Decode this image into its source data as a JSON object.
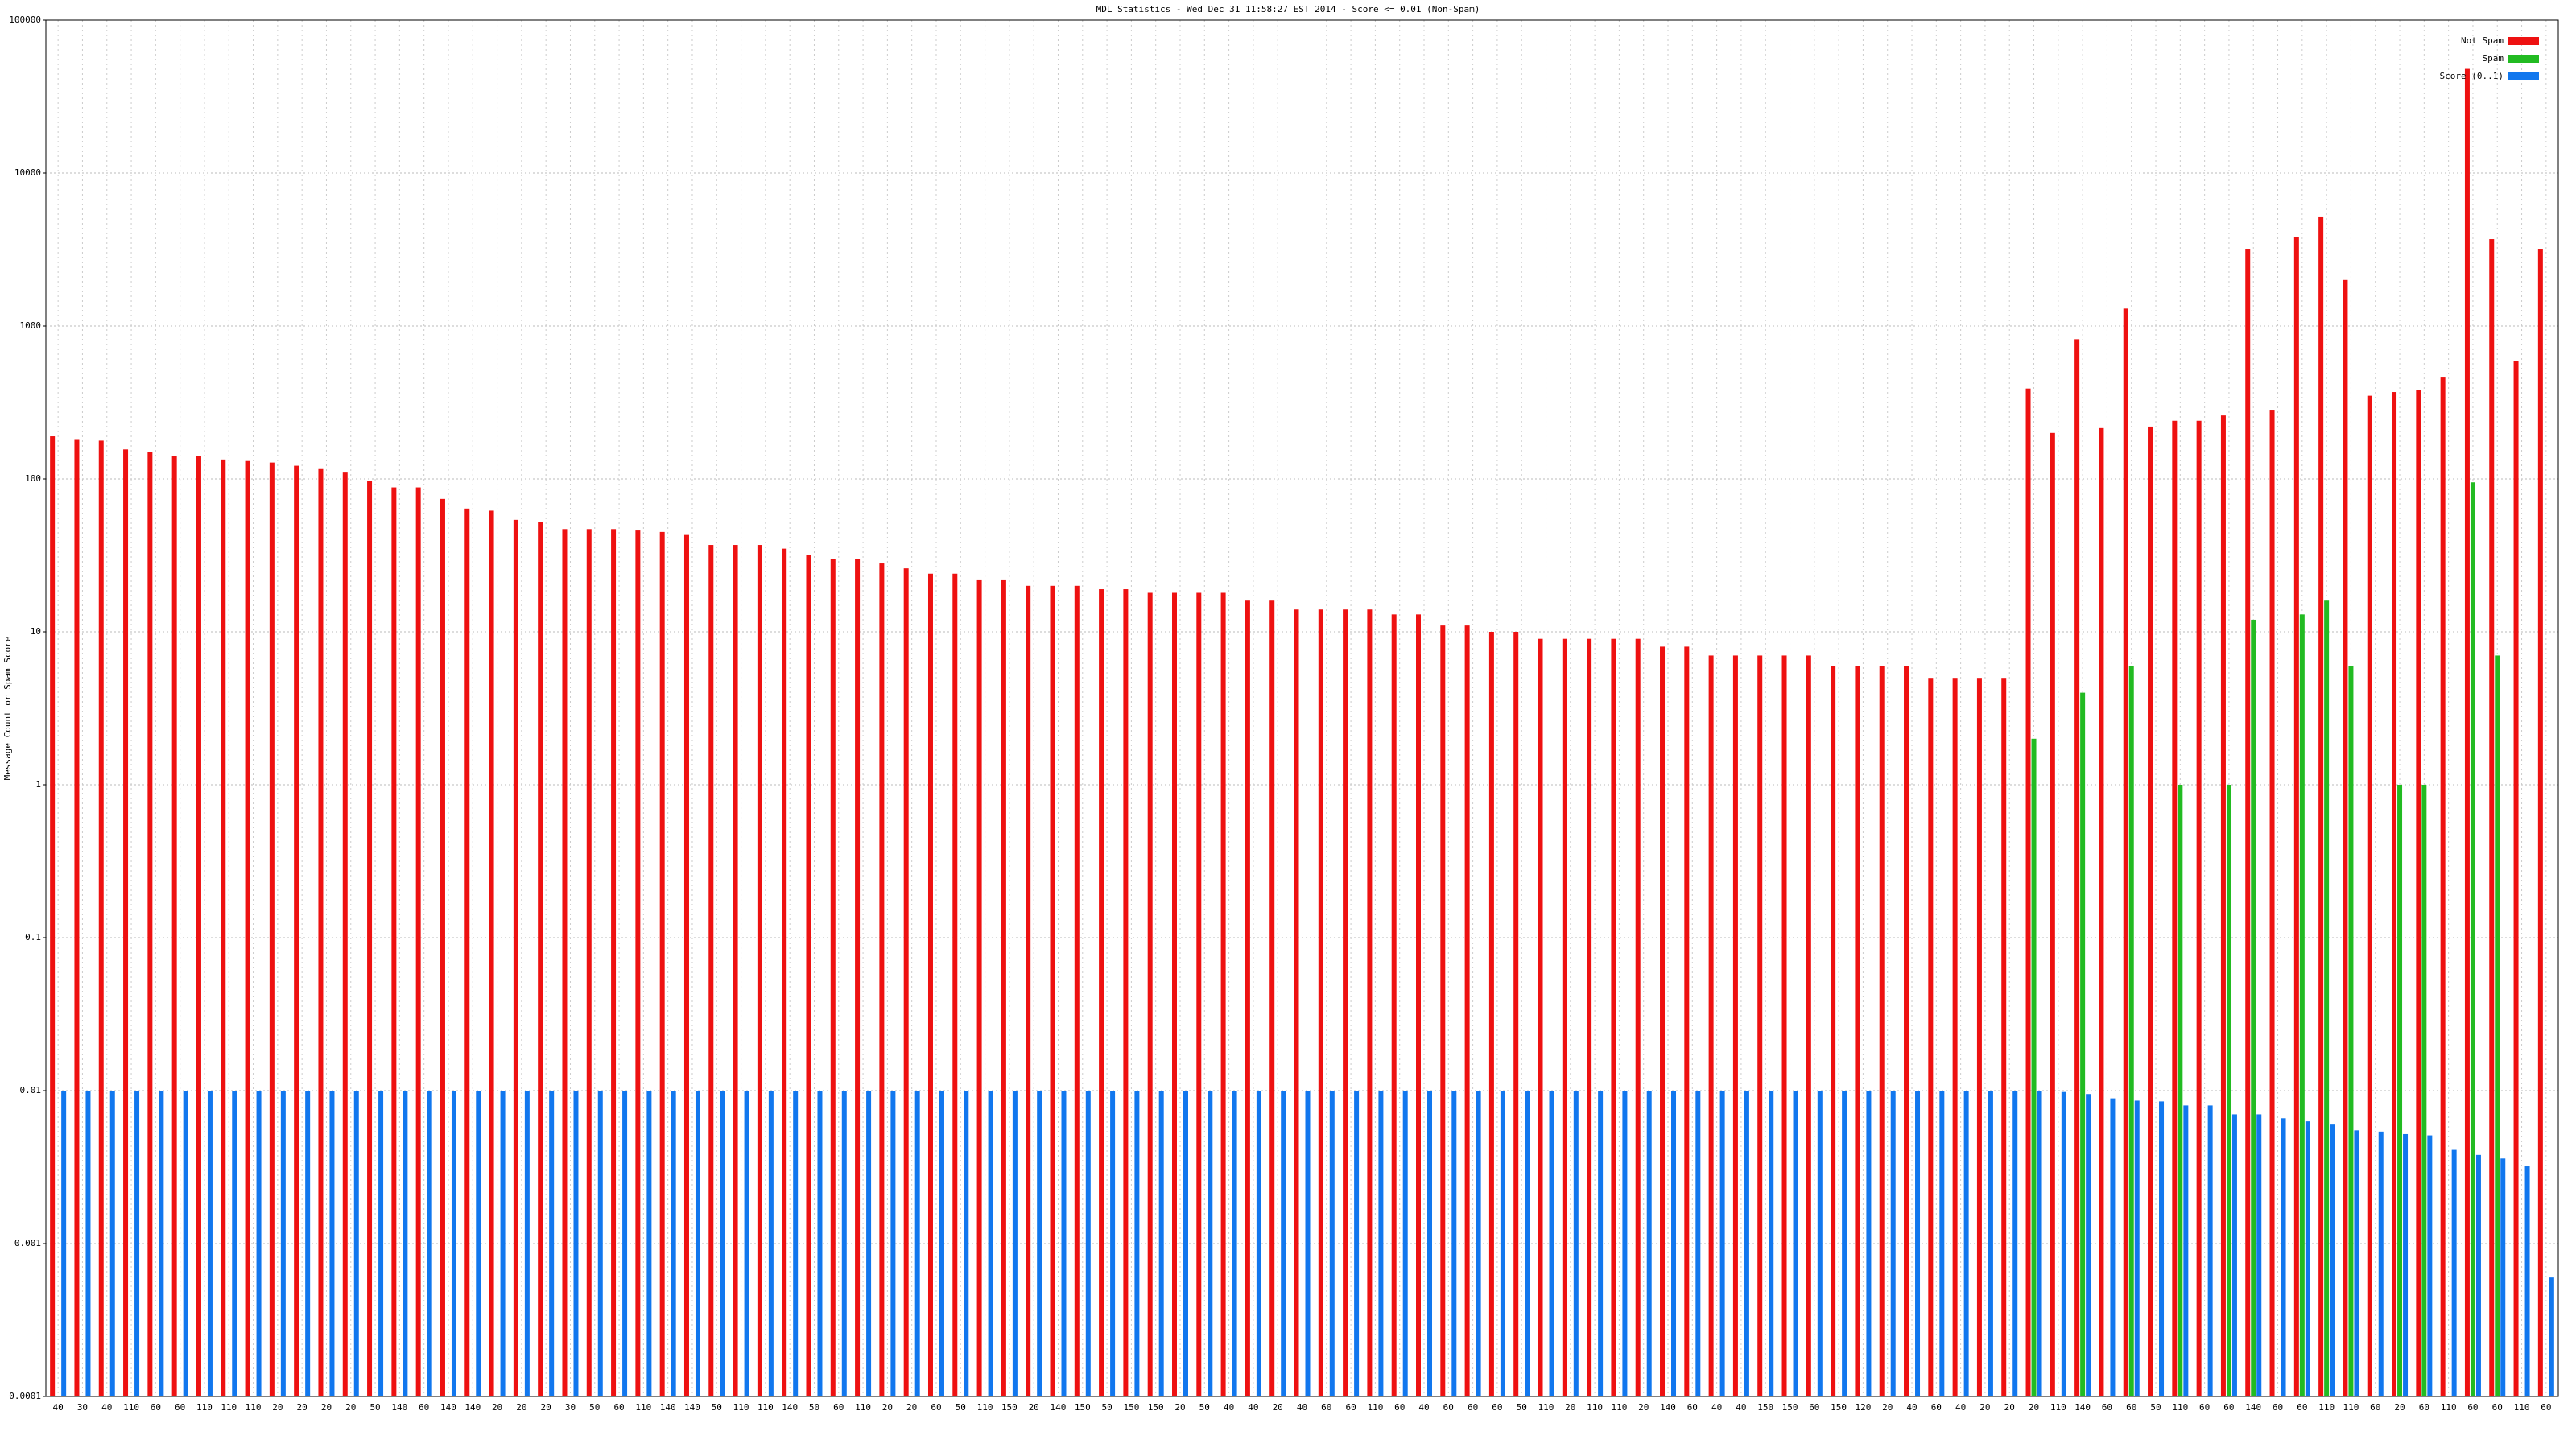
{
  "chart_data": {
    "type": "bar",
    "title": "MDL Statistics - Wed Dec 31 11:58:27 EST 2014 - Score <= 0.01 (Non-Spam)",
    "ylabel": "Message Count or Spam Score",
    "log_scale": true,
    "grid": true,
    "legend": "top-right",
    "ylim": [
      0.0001,
      100000
    ],
    "yticks": [
      0.0001,
      0.001,
      0.01,
      0.1,
      1,
      10,
      100,
      1000,
      10000,
      100000
    ],
    "categories": [
      "40",
      "30",
      "40",
      "110",
      "60",
      "60",
      "110",
      "110",
      "110",
      "20",
      "20",
      "20",
      "20",
      "50",
      "140",
      "60",
      "140",
      "140",
      "20",
      "20",
      "20",
      "30",
      "50",
      "60",
      "110",
      "140",
      "140",
      "50",
      "110",
      "110",
      "140",
      "50",
      "60",
      "110",
      "20",
      "20",
      "60",
      "50",
      "110",
      "150",
      "20",
      "140",
      "150",
      "50",
      "150",
      "150",
      "20",
      "50",
      "40",
      "40",
      "20",
      "40",
      "60",
      "60",
      "110",
      "60",
      "40",
      "60",
      "60",
      "60",
      "50",
      "110",
      "20",
      "110",
      "110",
      "20",
      "140",
      "60",
      "40",
      "40",
      "150",
      "150",
      "60",
      "150",
      "120",
      "20",
      "40",
      "60",
      "40",
      "20",
      "20",
      "20",
      "110",
      "140",
      "60",
      "60",
      "50",
      "110",
      "60",
      "60",
      "140",
      "60",
      "60",
      "110",
      "110",
      "60",
      "20",
      "60",
      "110",
      "60",
      "60",
      "110",
      "60"
    ],
    "series": [
      {
        "name": "Not Spam",
        "color": "#ee1111",
        "values": [
          190,
          180,
          178,
          156,
          150,
          141,
          141,
          134,
          131,
          128,
          122,
          116,
          110,
          97,
          88,
          88,
          74,
          64,
          62,
          54,
          52,
          47,
          47,
          47,
          46,
          45,
          43,
          37,
          37,
          37,
          35,
          32,
          30,
          30,
          28,
          26,
          24,
          24,
          22,
          22,
          20,
          20,
          20,
          19,
          19,
          18,
          18,
          18,
          18,
          16,
          16,
          14,
          14,
          14,
          14,
          13,
          13,
          11,
          11,
          10,
          10,
          9,
          9,
          9,
          9,
          9,
          8,
          8,
          7,
          7,
          7,
          7,
          7,
          6,
          6,
          6,
          6,
          5,
          5,
          5,
          5,
          390,
          200,
          820,
          215,
          1300,
          220,
          240,
          240,
          260,
          3200,
          280,
          3800,
          5200,
          2000,
          350,
          370,
          380,
          460,
          48000,
          3700,
          590,
          3200
        ]
      },
      {
        "name": "Spam",
        "color": "#22bb22",
        "values": [
          null,
          null,
          null,
          null,
          null,
          null,
          null,
          null,
          null,
          null,
          null,
          null,
          null,
          null,
          null,
          null,
          null,
          null,
          null,
          null,
          null,
          null,
          null,
          null,
          null,
          null,
          null,
          null,
          null,
          null,
          null,
          null,
          null,
          null,
          null,
          null,
          null,
          null,
          null,
          null,
          null,
          null,
          null,
          null,
          null,
          null,
          null,
          null,
          null,
          null,
          null,
          null,
          null,
          null,
          null,
          null,
          null,
          null,
          null,
          null,
          null,
          null,
          null,
          null,
          null,
          null,
          null,
          null,
          null,
          null,
          null,
          null,
          null,
          null,
          null,
          null,
          null,
          null,
          null,
          null,
          null,
          2,
          null,
          4,
          null,
          6,
          null,
          1,
          null,
          1,
          12,
          null,
          13,
          16,
          6,
          null,
          1,
          1,
          null,
          95,
          7,
          null,
          null
        ]
      },
      {
        "name": "Score (0..1)",
        "color": "#1177ee",
        "values": [
          0.01,
          0.01,
          0.01,
          0.01,
          0.01,
          0.01,
          0.01,
          0.01,
          0.01,
          0.01,
          0.01,
          0.01,
          0.01,
          0.01,
          0.01,
          0.01,
          0.01,
          0.01,
          0.01,
          0.01,
          0.01,
          0.01,
          0.01,
          0.01,
          0.01,
          0.01,
          0.01,
          0.01,
          0.01,
          0.01,
          0.01,
          0.01,
          0.01,
          0.01,
          0.01,
          0.01,
          0.01,
          0.01,
          0.01,
          0.01,
          0.01,
          0.01,
          0.01,
          0.01,
          0.01,
          0.01,
          0.01,
          0.01,
          0.01,
          0.01,
          0.01,
          0.01,
          0.01,
          0.01,
          0.01,
          0.01,
          0.01,
          0.01,
          0.01,
          0.01,
          0.01,
          0.01,
          0.01,
          0.01,
          0.01,
          0.01,
          0.01,
          0.01,
          0.01,
          0.01,
          0.01,
          0.01,
          0.01,
          0.01,
          0.01,
          0.01,
          0.01,
          0.01,
          0.01,
          0.01,
          0.01,
          0.01,
          0.0098,
          0.0095,
          0.0089,
          0.0086,
          0.0085,
          0.008,
          0.008,
          0.007,
          0.007,
          0.0066,
          0.0063,
          0.006,
          0.0055,
          0.0054,
          0.0052,
          0.0051,
          0.0041,
          0.0038,
          0.0036,
          0.0032,
          0.0006
        ]
      }
    ]
  }
}
